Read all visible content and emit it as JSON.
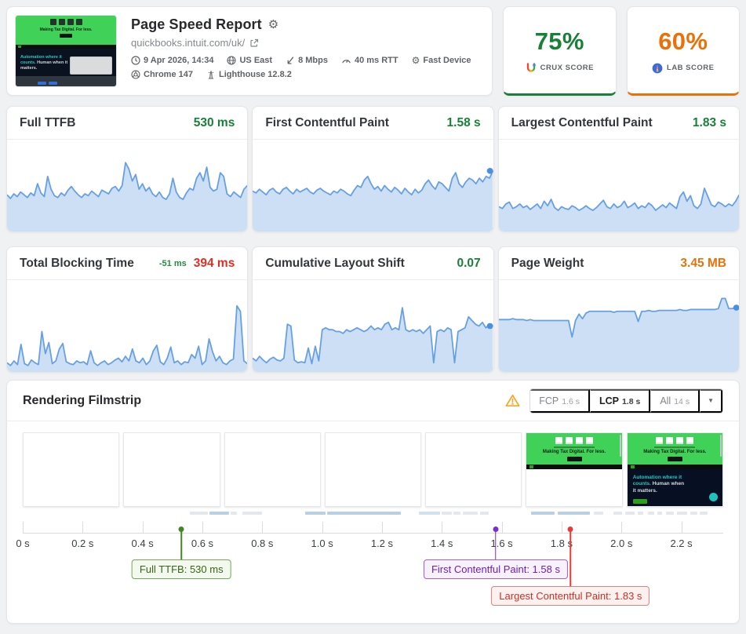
{
  "header": {
    "title": "Page Speed Report",
    "url": "quickbooks.intuit.com/uk/",
    "meta": [
      {
        "icon": "clock-icon",
        "label": "9 Apr 2026, 14:34"
      },
      {
        "icon": "globe-icon",
        "label": "US East"
      },
      {
        "icon": "speed-icon",
        "label": "8 Mbps"
      },
      {
        "icon": "rtt-gauge-icon",
        "label": "40 ms RTT"
      },
      {
        "icon": "device-icon",
        "label": "Fast Device"
      },
      {
        "icon": "chrome-icon",
        "label": "Chrome 147"
      },
      {
        "icon": "lighthouse-icon",
        "label": "Lighthouse 12.8.2"
      }
    ]
  },
  "site": {
    "banner_title": "Making Tax Digital. For less.",
    "hero_teal": "Automation where it counts.",
    "hero_white": "Human when it matters.",
    "banner_color": "#3fd158"
  },
  "scores": [
    {
      "value": "75%",
      "label": "CRUX SCORE",
      "color": "#188038",
      "icon": "crux-logo-icon"
    },
    {
      "value": "60%",
      "label": "LAB SCORE",
      "color": "#e8710a",
      "icon": "lab-logo-icon"
    }
  ],
  "chart_data": [
    {
      "type": "area",
      "title": "Full TTFB",
      "value": "530 ms",
      "value_color": "#188038",
      "end_dot": false,
      "values": [
        40,
        36,
        41,
        38,
        43,
        40,
        37,
        42,
        39,
        52,
        42,
        38,
        60,
        46,
        39,
        37,
        42,
        39,
        45,
        49,
        44,
        40,
        37,
        41,
        39,
        44,
        41,
        38,
        45,
        43,
        41,
        47,
        49,
        44,
        50,
        75,
        68,
        55,
        62,
        46,
        52,
        44,
        48,
        41,
        38,
        43,
        37,
        35,
        41,
        58,
        43,
        37,
        35,
        42,
        47,
        45,
        58,
        64,
        55,
        70,
        48,
        44,
        46,
        64,
        60,
        41,
        38,
        43,
        40,
        37,
        46,
        50
      ]
    },
    {
      "type": "area",
      "title": "First Contentful Paint",
      "value": "1.58 s",
      "value_color": "#188038",
      "end_dot": true,
      "values": [
        44,
        42,
        46,
        43,
        40,
        45,
        47,
        43,
        41,
        46,
        48,
        44,
        41,
        46,
        43,
        45,
        47,
        43,
        41,
        45,
        47,
        44,
        42,
        40,
        44,
        42,
        46,
        44,
        41,
        39,
        45,
        50,
        48,
        56,
        60,
        52,
        46,
        49,
        44,
        50,
        46,
        43,
        48,
        45,
        41,
        47,
        43,
        40,
        46,
        42,
        45,
        52,
        56,
        50,
        46,
        54,
        52,
        48,
        44,
        58,
        64,
        52,
        48,
        54,
        58,
        56,
        52,
        58,
        54,
        60,
        58,
        66
      ]
    },
    {
      "type": "area",
      "title": "Largest Contentful Paint",
      "value": "1.83 s",
      "value_color": "#188038",
      "end_dot": false,
      "values": [
        27,
        25,
        30,
        32,
        25,
        27,
        30,
        26,
        28,
        24,
        27,
        30,
        25,
        33,
        28,
        35,
        26,
        23,
        27,
        25,
        24,
        28,
        26,
        23,
        25,
        28,
        25,
        23,
        26,
        30,
        34,
        27,
        25,
        30,
        26,
        28,
        33,
        26,
        28,
        31,
        25,
        28,
        26,
        31,
        28,
        23,
        26,
        29,
        26,
        31,
        28,
        25,
        38,
        43,
        33,
        39,
        28,
        25,
        30,
        47,
        38,
        29,
        27,
        32,
        30,
        27,
        30,
        28,
        33,
        40
      ]
    },
    {
      "type": "area",
      "title": "Total Blocking Time",
      "value": "394 ms",
      "value_color": "#de3025",
      "delta": "-51 ms",
      "delta_color": "#1e8e3e",
      "end_dot": false,
      "values": [
        10,
        7,
        12,
        8,
        30,
        9,
        7,
        13,
        10,
        8,
        44,
        20,
        32,
        9,
        12,
        25,
        31,
        11,
        9,
        8,
        12,
        10,
        11,
        8,
        23,
        10,
        7,
        10,
        12,
        8,
        10,
        13,
        15,
        11,
        17,
        12,
        25,
        12,
        10,
        15,
        8,
        12,
        23,
        29,
        11,
        8,
        15,
        27,
        10,
        12,
        8,
        11,
        10,
        19,
        15,
        28,
        8,
        12,
        36,
        22,
        12,
        17,
        10,
        8,
        12,
        14,
        72,
        66,
        12,
        9
      ]
    },
    {
      "type": "area",
      "title": "Cumulative Layout Shift",
      "value": "0.07",
      "value_color": "#188038",
      "end_dot": true,
      "values": [
        15,
        12,
        17,
        13,
        10,
        14,
        16,
        13,
        12,
        15,
        52,
        50,
        13,
        10,
        11,
        10,
        26,
        9,
        28,
        12,
        46,
        48,
        46,
        46,
        44,
        44,
        42,
        46,
        44,
        46,
        48,
        46,
        44,
        46,
        50,
        46,
        48,
        46,
        52,
        54,
        46,
        48,
        46,
        70,
        46,
        44,
        46,
        44,
        46,
        42,
        46,
        50,
        10,
        44,
        46,
        44,
        48,
        46,
        10,
        44,
        46,
        48,
        60,
        56,
        52,
        50,
        54,
        48,
        52,
        50
      ]
    },
    {
      "type": "area",
      "title": "Page Weight",
      "value": "3.45 MB",
      "value_color": "#e8710a",
      "end_dot": true,
      "values": [
        57,
        57,
        57,
        57,
        58,
        57,
        57,
        57,
        56,
        57,
        56,
        56,
        56,
        56,
        56,
        56,
        56,
        56,
        56,
        56,
        56,
        38,
        56,
        63,
        58,
        64,
        66,
        66,
        66,
        66,
        66,
        66,
        66,
        65,
        66,
        66,
        66,
        66,
        66,
        66,
        55,
        66,
        66,
        67,
        66,
        66,
        67,
        67,
        67,
        67,
        67,
        67,
        68,
        67,
        67,
        68,
        68,
        68,
        68,
        68,
        68,
        68,
        68,
        69,
        80,
        80,
        69,
        69,
        70,
        70
      ]
    }
  ],
  "filmstrip": {
    "title": "Rendering Filmstrip",
    "buttons": [
      {
        "label": "FCP",
        "value": "1.6 s",
        "active": false
      },
      {
        "label": "LCP",
        "value": "1.8 s",
        "active": true
      },
      {
        "label": "All",
        "value": "14 s",
        "active": false
      }
    ],
    "frames": [
      {
        "type": "blank"
      },
      {
        "type": "blank"
      },
      {
        "type": "blank"
      },
      {
        "type": "blank"
      },
      {
        "type": "blank"
      },
      {
        "type": "paint-light"
      },
      {
        "type": "paint-dark"
      }
    ],
    "waterfall": [
      {
        "l": 23.8,
        "w": 2.6,
        "c": "#e4e7eb"
      },
      {
        "l": 26.6,
        "w": 2.9,
        "c": "#b9cfe3"
      },
      {
        "l": 29.7,
        "w": 0.9,
        "c": "#e4e7eb"
      },
      {
        "l": 31.3,
        "w": 2.8,
        "c": "#e4e7eb"
      },
      {
        "l": 40.3,
        "w": 2.9,
        "c": "#b9cfe3"
      },
      {
        "l": 43.4,
        "w": 10.6,
        "c": "#b9cfe3"
      },
      {
        "l": 56.6,
        "w": 3.0,
        "c": "#d3e1ee"
      },
      {
        "l": 59.8,
        "w": 1.4,
        "c": "#e4e7eb"
      },
      {
        "l": 61.5,
        "w": 1.0,
        "c": "#e4e7eb"
      },
      {
        "l": 62.8,
        "w": 2.2,
        "c": "#e4e7eb"
      },
      {
        "l": 65.3,
        "w": 1.2,
        "c": "#e4e7eb"
      },
      {
        "l": 72.6,
        "w": 3.3,
        "c": "#b9cfe3"
      },
      {
        "l": 76.4,
        "w": 4.6,
        "c": "#b9cfe3"
      },
      {
        "l": 81.5,
        "w": 1.4,
        "c": "#e4e7eb"
      },
      {
        "l": 84.3,
        "w": 1.2,
        "c": "#e4e7eb"
      },
      {
        "l": 86.0,
        "w": 1.4,
        "c": "#e4e7eb"
      },
      {
        "l": 87.8,
        "w": 0.8,
        "c": "#e4e7eb"
      },
      {
        "l": 89.2,
        "w": 1.0,
        "c": "#e4e7eb"
      },
      {
        "l": 90.6,
        "w": 0.7,
        "c": "#e4e7eb"
      },
      {
        "l": 91.8,
        "w": 1.2,
        "c": "#e4e7eb"
      },
      {
        "l": 93.4,
        "w": 1.5,
        "c": "#e4e7eb"
      },
      {
        "l": 95.3,
        "w": 1.0,
        "c": "#e4e7eb"
      },
      {
        "l": 96.6,
        "w": 1.2,
        "c": "#e4e7eb"
      }
    ],
    "timeline": {
      "max": 2.34,
      "ticks": [
        {
          "t": 0.0,
          "label": "0 s"
        },
        {
          "t": 0.2,
          "label": "0.2 s"
        },
        {
          "t": 0.4,
          "label": "0.4 s"
        },
        {
          "t": 0.6,
          "label": "0.6 s"
        },
        {
          "t": 0.8,
          "label": "0.8 s"
        },
        {
          "t": 1.0,
          "label": "1.0 s"
        },
        {
          "t": 1.2,
          "label": "1.2 s"
        },
        {
          "t": 1.4,
          "label": "1.4 s"
        },
        {
          "t": 1.6,
          "label": "1.6 s"
        },
        {
          "t": 1.8,
          "label": "1.8 s"
        },
        {
          "t": 2.0,
          "label": "2.0 s"
        },
        {
          "t": 2.2,
          "label": "2.2 s"
        }
      ],
      "markers": [
        {
          "t": 0.53,
          "label": "Full TTFB: 530 ms",
          "dot": "#3e8723",
          "bg": "#f3f9ee",
          "border": "#79a554",
          "text": "#386414",
          "row": 0
        },
        {
          "t": 1.58,
          "label": "First Contentful Paint: 1.58 s",
          "dot": "#7c2bd6",
          "bg": "#f7f0fd",
          "border": "#a659e8",
          "text": "#6d1fb8",
          "row": 0
        },
        {
          "t": 1.83,
          "label": "Largest Contentful Paint: 1.83 s",
          "dot": "#e43d38",
          "bg": "#fdf1f0",
          "border": "#e5807b",
          "text": "#d02e24",
          "row": 1
        }
      ]
    }
  }
}
